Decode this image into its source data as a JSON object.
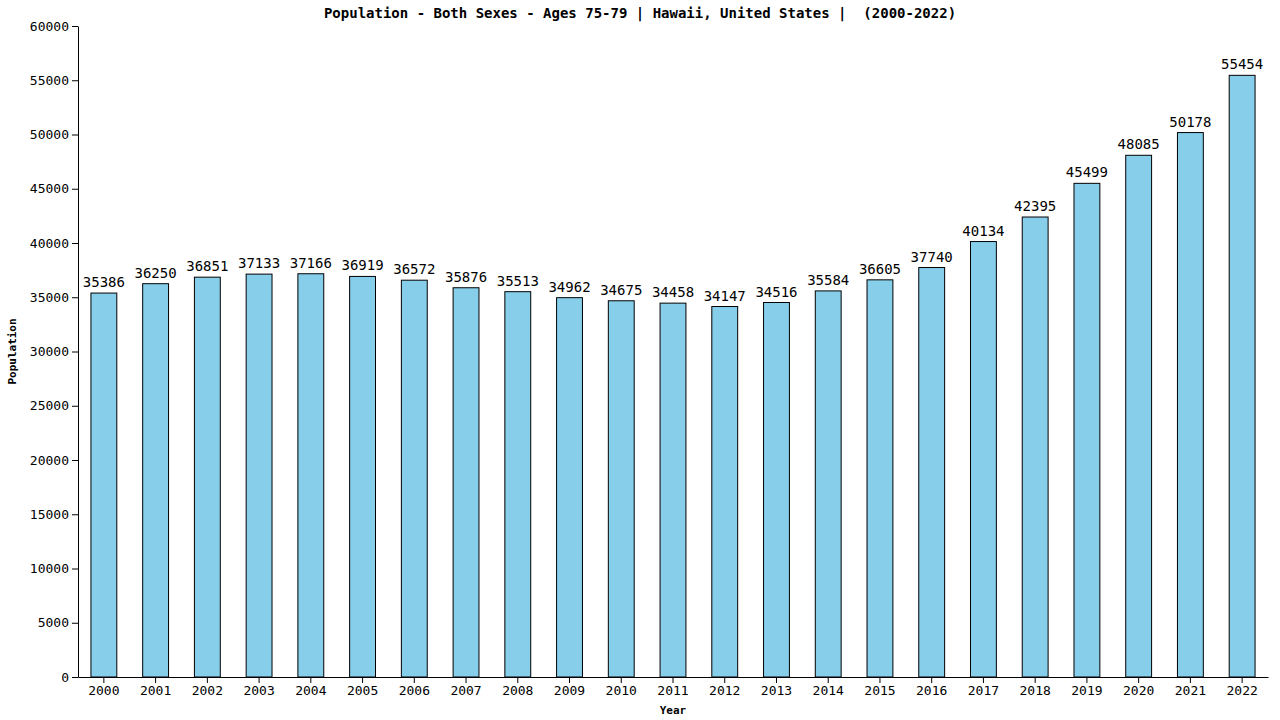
{
  "chart_data": {
    "type": "bar",
    "title": "Population - Both Sexes - Ages 75-79 | Hawaii, United States |  (2000-2022)",
    "x_label": "Year",
    "y_label": "Population",
    "categories": [
      "2000",
      "2001",
      "2002",
      "2003",
      "2004",
      "2005",
      "2006",
      "2007",
      "2008",
      "2009",
      "2010",
      "2011",
      "2012",
      "2013",
      "2014",
      "2015",
      "2016",
      "2017",
      "2018",
      "2019",
      "2020",
      "2021",
      "2022"
    ],
    "values": [
      35386,
      36250,
      36851,
      37133,
      37166,
      36919,
      36572,
      35876,
      35513,
      34962,
      34675,
      34458,
      34147,
      34516,
      35584,
      36605,
      37740,
      40134,
      42395,
      45499,
      48085,
      50178,
      55454
    ],
    "color": "#87ceeb",
    "ylim": [
      0,
      60000
    ],
    "yticks": [
      0,
      5000,
      10000,
      15000,
      20000,
      25000,
      30000,
      35000,
      40000,
      45000,
      50000,
      55000,
      60000
    ],
    "grid": false,
    "data_labels": true
  }
}
